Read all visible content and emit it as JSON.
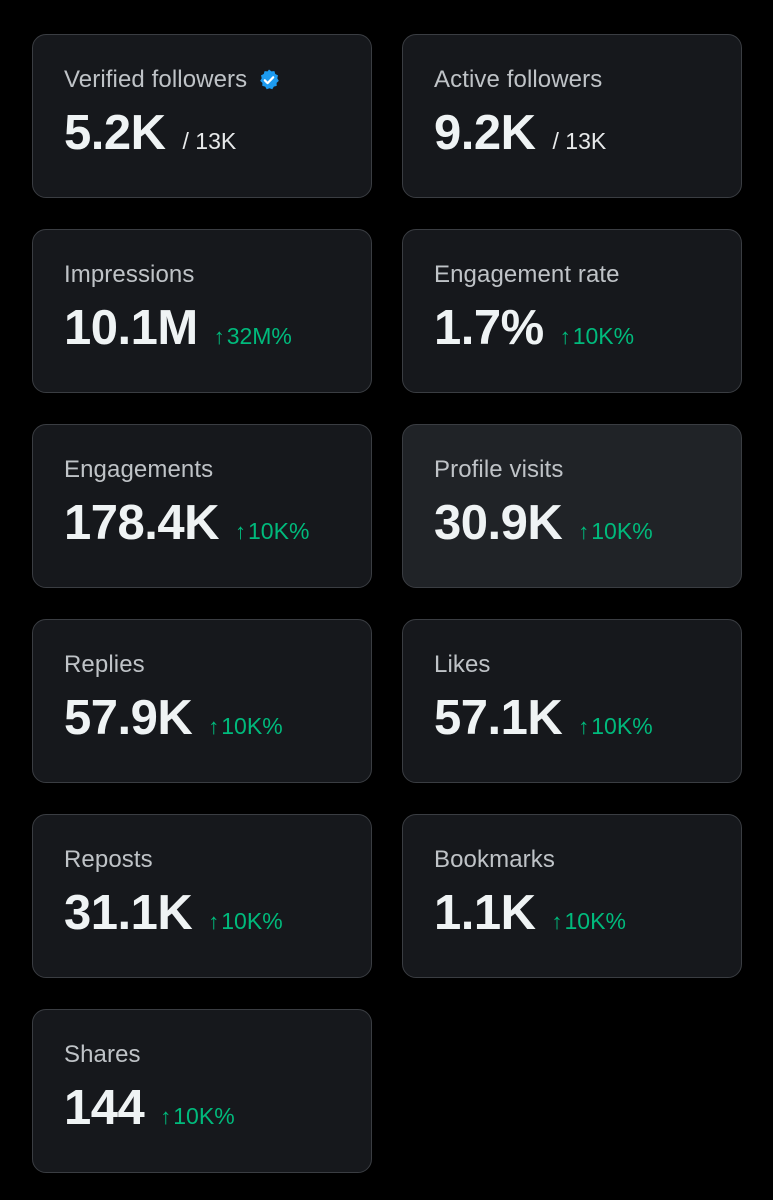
{
  "stats": [
    {
      "id": "verified-followers",
      "label": "Verified followers",
      "value": "5.2K",
      "total": "/ 13K",
      "verified": true
    },
    {
      "id": "active-followers",
      "label": "Active followers",
      "value": "9.2K",
      "total": "/ 13K"
    },
    {
      "id": "impressions",
      "label": "Impressions",
      "value": "10.1M",
      "change": "32M%"
    },
    {
      "id": "engagement-rate",
      "label": "Engagement rate",
      "value": "1.7%",
      "change": "10K%"
    },
    {
      "id": "engagements",
      "label": "Engagements",
      "value": "178.4K",
      "change": "10K%"
    },
    {
      "id": "profile-visits",
      "label": "Profile visits",
      "value": "30.9K",
      "change": "10K%",
      "highlighted": true
    },
    {
      "id": "replies",
      "label": "Replies",
      "value": "57.9K",
      "change": "10K%"
    },
    {
      "id": "likes",
      "label": "Likes",
      "value": "57.1K",
      "change": "10K%"
    },
    {
      "id": "reposts",
      "label": "Reposts",
      "value": "31.1K",
      "change": "10K%"
    },
    {
      "id": "bookmarks",
      "label": "Bookmarks",
      "value": "1.1K",
      "change": "10K%"
    },
    {
      "id": "shares",
      "label": "Shares",
      "value": "144",
      "change": "10K%"
    }
  ],
  "icons": {
    "verified": "verified-badge-icon",
    "change": "arrow-up-icon"
  },
  "colors": {
    "background": "#000000",
    "card": "#16181c",
    "card_hover": "#202327",
    "border": "#3a3d42",
    "positive": "#00ba7c",
    "verified": "#1d9bf0"
  }
}
